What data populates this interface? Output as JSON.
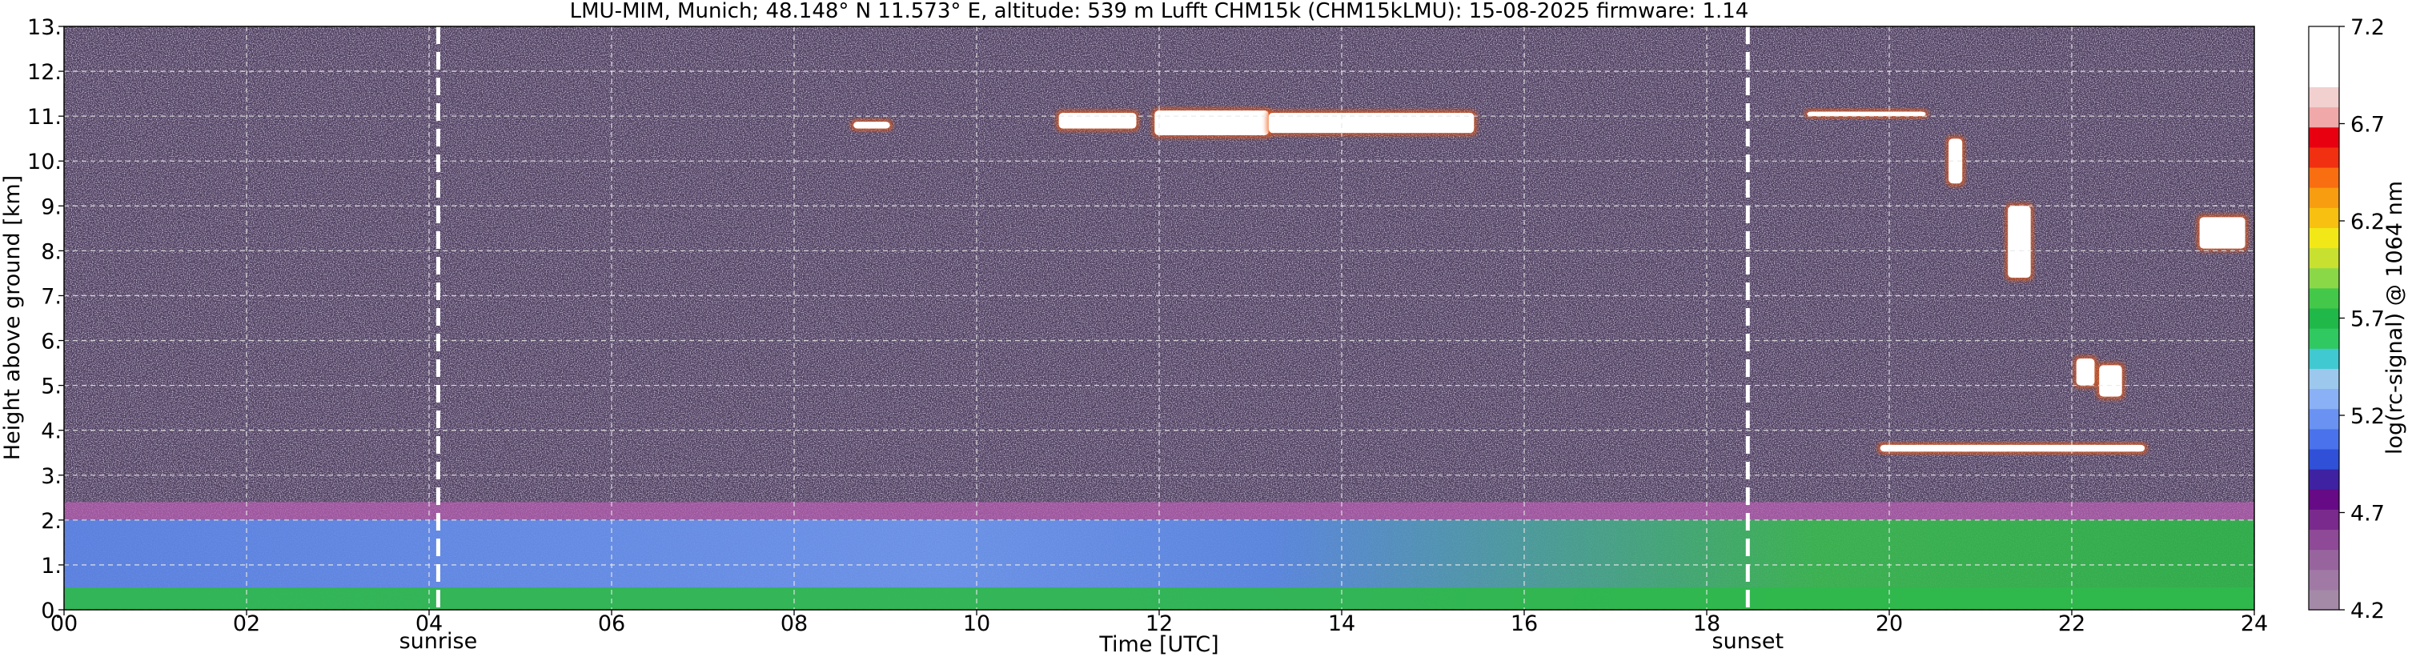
{
  "chart_data": {
    "type": "heatmap",
    "title": "LMU-MIM, Munich; 48.148° N 11.573° E, altitude: 539 m    Lufft CHM15k (CHM15kLMU): 15-08-2025    firmware: 1.14",
    "xlabel": "Time [UTC]",
    "ylabel": "Height above ground [km]",
    "xlim": [
      0,
      24
    ],
    "ylim": [
      0,
      13
    ],
    "x_ticks": [
      "00",
      "02",
      "04",
      "06",
      "08",
      "10",
      "12",
      "14",
      "16",
      "18",
      "20",
      "22",
      "24"
    ],
    "y_ticks": [
      "0.",
      "1.",
      "2.",
      "3.",
      "4.",
      "5.",
      "6.",
      "7.",
      "8.",
      "9.",
      "10.",
      "11.",
      "12.",
      "13."
    ],
    "grid": true,
    "markers": [
      {
        "label": "sunrise",
        "time": 4.1
      },
      {
        "label": "sunset",
        "time": 18.45
      }
    ],
    "colorbar": {
      "label": "log(rc-signal) @ 1064 nm",
      "range": [
        4.2,
        7.2
      ],
      "ticks": [
        "4.2",
        "4.7",
        "5.2",
        "5.7",
        "6.2",
        "6.7",
        "7.2"
      ],
      "colors": [
        "#a58aa8",
        "#a07aa5",
        "#98649e",
        "#8e4a96",
        "#7a2a8c",
        "#660a86",
        "#3e22a2",
        "#3050d8",
        "#4a72ec",
        "#6a92f2",
        "#8ab0f6",
        "#9cc8ee",
        "#40c9d0",
        "#30c860",
        "#20b848",
        "#44c84a",
        "#8ad848",
        "#c8e030",
        "#f2e818",
        "#f8c010",
        "#f89c10",
        "#f86e10",
        "#f03010",
        "#e80010",
        "#f0a8a8",
        "#f2d0d0",
        "#ffffff",
        "#ffffff",
        "#ffffff"
      ]
    },
    "layers": [
      {
        "name": "background-noise",
        "from_km": 3.0,
        "to_km": 13.0,
        "color": "#4a3a5a"
      },
      {
        "name": "residual-layer",
        "from_km": 2.0,
        "to_km": 2.4,
        "color": "#b65fb0"
      },
      {
        "name": "boundary-layer",
        "from_km": 0.0,
        "to_km": 2.0,
        "color": "#6a90f0"
      },
      {
        "name": "surface-layer",
        "from_km": 0.0,
        "to_km": 0.5,
        "color": "#2fb84c"
      }
    ],
    "clouds": [
      {
        "t_start": 8.65,
        "t_end": 9.05,
        "height_km": 10.8,
        "depth_km": 0.15
      },
      {
        "t_start": 10.9,
        "t_end": 11.75,
        "height_km": 10.9,
        "depth_km": 0.35
      },
      {
        "t_start": 11.95,
        "t_end": 13.2,
        "height_km": 10.85,
        "depth_km": 0.55
      },
      {
        "t_start": 13.2,
        "t_end": 15.45,
        "height_km": 10.85,
        "depth_km": 0.45
      },
      {
        "t_start": 19.1,
        "t_end": 20.4,
        "height_km": 11.05,
        "depth_km": 0.1
      },
      {
        "t_start": 20.65,
        "t_end": 20.8,
        "height_km": 10.0,
        "depth_km": 1.0
      },
      {
        "t_start": 21.3,
        "t_end": 21.55,
        "height_km": 8.2,
        "depth_km": 1.6
      },
      {
        "t_start": 22.05,
        "t_end": 22.25,
        "height_km": 5.3,
        "depth_km": 0.6
      },
      {
        "t_start": 22.3,
        "t_end": 22.55,
        "height_km": 5.1,
        "depth_km": 0.7
      },
      {
        "t_start": 23.4,
        "t_end": 23.9,
        "height_km": 8.4,
        "depth_km": 0.7
      },
      {
        "t_start": 19.9,
        "t_end": 22.8,
        "height_km": 3.6,
        "depth_km": 0.15
      }
    ]
  }
}
